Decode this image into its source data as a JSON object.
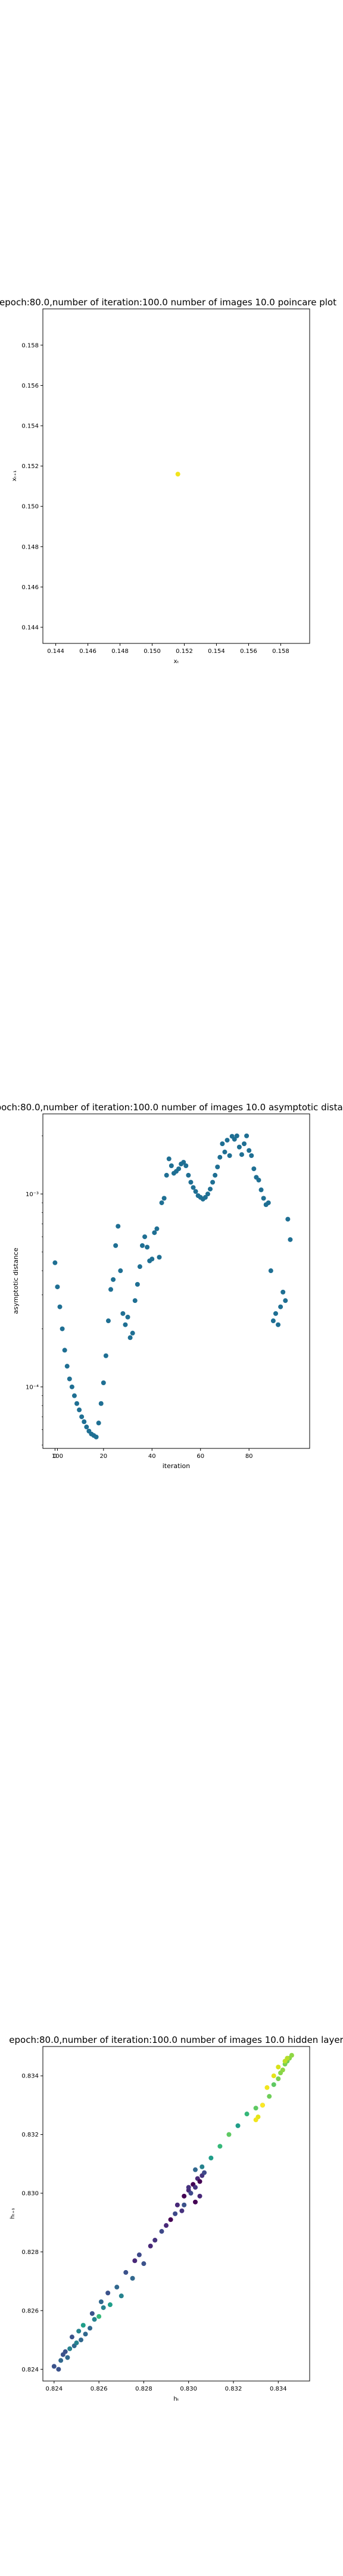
{
  "chart_data": [
    {
      "type": "scatter",
      "title": "epoch:80.0,number of iteration:100.0 number of images 10.0 poincare plot",
      "xlabel": "xₜ",
      "ylabel": "xₜ₊₁",
      "xlim": [
        0.1432,
        0.1598
      ],
      "ylim": [
        0.1432,
        0.1598
      ],
      "xticks": [
        "0.144",
        "0.146",
        "0.148",
        "0.150",
        "0.152",
        "0.154",
        "0.156",
        "0.158"
      ],
      "yticks": [
        "0.144",
        "0.146",
        "0.148",
        "0.150",
        "0.152",
        "0.154",
        "0.156",
        "0.158"
      ],
      "grid": false,
      "points": [
        {
          "x": 0.1516,
          "y": 0.1516,
          "color": "#f2e41d"
        }
      ]
    },
    {
      "type": "scatter",
      "title": "epoch:80.0,number of iteration:100.0  number of images 10.0 asymptotic distance",
      "xlabel": "iteration",
      "ylabel": "asymptotic distance",
      "yscale": "log",
      "xlim": [
        -5,
        105
      ],
      "ylim": [
        4.8e-05,
        0.0026
      ],
      "xticks": [
        "0",
        "20",
        "40",
        "60",
        "80",
        "100"
      ],
      "yticks": [
        "10⁻⁴",
        "10⁻³"
      ],
      "grid": false,
      "color": "#1f6f93",
      "x": [
        0,
        1,
        2,
        3,
        4,
        5,
        6,
        7,
        8,
        9,
        10,
        11,
        12,
        13,
        14,
        15,
        16,
        17,
        18,
        19,
        20,
        21,
        22,
        23,
        24,
        25,
        26,
        27,
        28,
        29,
        30,
        31,
        32,
        33,
        34,
        35,
        36,
        37,
        38,
        39,
        40,
        41,
        42,
        43,
        44,
        45,
        46,
        47,
        48,
        49,
        50,
        51,
        52,
        53,
        54,
        55,
        56,
        57,
        58,
        59,
        60,
        61,
        62,
        63,
        64,
        65,
        66,
        67,
        68,
        69,
        70,
        71,
        72,
        73,
        74,
        75,
        76,
        77,
        78,
        79,
        80,
        81,
        82,
        83,
        84,
        85,
        86,
        87,
        88,
        89,
        90,
        91,
        92,
        93,
        94,
        95,
        96,
        97,
        98,
        99
      ],
      "values": [
        0.00044,
        0.00033,
        0.00026,
        0.0002,
        0.000155,
        0.000128,
        0.00011,
        0.0001,
        9e-05,
        8.2e-05,
        7.6e-05,
        7e-05,
        6.6e-05,
        6.2e-05,
        5.9e-05,
        5.7e-05,
        5.6e-05,
        5.5e-05,
        6.5e-05,
        8.2e-05,
        0.000105,
        0.000145,
        0.00022,
        0.00032,
        0.00036,
        0.00054,
        0.00068,
        0.0004,
        0.00024,
        0.00021,
        0.00023,
        0.00018,
        0.00019,
        0.00028,
        0.00034,
        0.00042,
        0.00054,
        0.0006,
        0.00053,
        0.00045,
        0.00046,
        0.00063,
        0.00066,
        0.00047,
        0.0009,
        0.00095,
        0.00125,
        0.00152,
        0.0014,
        0.00128,
        0.00131,
        0.00135,
        0.00143,
        0.00146,
        0.0014,
        0.00125,
        0.00115,
        0.00108,
        0.00103,
        0.00098,
        0.00096,
        0.00094,
        0.00096,
        0.001,
        0.00106,
        0.00115,
        0.00125,
        0.00138,
        0.00155,
        0.00182,
        0.00165,
        0.0019,
        0.00158,
        0.00199,
        0.00192,
        0.002,
        0.00175,
        0.0016,
        0.00182,
        0.002,
        0.00168,
        0.00158,
        0.00135,
        0.00122,
        0.00118,
        0.00105,
        0.00095,
        0.00088,
        0.0009,
        0.0004,
        0.00022,
        0.00024,
        0.00021,
        0.00026,
        0.00031,
        0.00028,
        0.00074,
        0.00058,
        0.0,
        0.0
      ]
    },
    {
      "type": "scatter",
      "title": "epoch:80.0,number of iteration:100.0  number of images 10.0 hidden layer",
      "xlabel": "hₜ",
      "ylabel": "hₜ₊₁",
      "xlim": [
        0.8235,
        0.8354
      ],
      "ylim": [
        0.8236,
        0.835
      ],
      "xticks": [
        "0.824",
        "0.826",
        "0.828",
        "0.830",
        "0.832",
        "0.834"
      ],
      "yticks": [
        "0.824",
        "0.826",
        "0.828",
        "0.830",
        "0.832",
        "0.834"
      ],
      "grid": false,
      "x": [
        0.824,
        0.8242,
        0.8243,
        0.8244,
        0.8246,
        0.8247,
        0.8245,
        0.8249,
        0.825,
        0.8248,
        0.8252,
        0.8251,
        0.8254,
        0.8253,
        0.8256,
        0.8258,
        0.8257,
        0.826,
        0.8262,
        0.8261,
        0.8265,
        0.8264,
        0.8268,
        0.827,
        0.8272,
        0.8275,
        0.8276,
        0.8278,
        0.828,
        0.8283,
        0.8285,
        0.8288,
        0.829,
        0.8292,
        0.8294,
        0.8295,
        0.8297,
        0.8298,
        0.83,
        0.8301,
        0.8302,
        0.8303,
        0.8304,
        0.8305,
        0.8306,
        0.8307,
        0.8305,
        0.8303,
        0.83,
        0.8298,
        0.8303,
        0.8306,
        0.831,
        0.8314,
        0.8318,
        0.8322,
        0.8326,
        0.833,
        0.8333,
        0.8336,
        0.8338,
        0.834,
        0.8341,
        0.8342,
        0.8343,
        0.8344,
        0.8345,
        0.8346,
        0.8344,
        0.8343,
        0.834,
        0.8338,
        0.8335,
        0.8333,
        0.8331,
        0.833
      ],
      "y": [
        0.8241,
        0.824,
        0.8243,
        0.8245,
        0.8244,
        0.8247,
        0.8246,
        0.8248,
        0.8249,
        0.8251,
        0.825,
        0.8253,
        0.8252,
        0.8255,
        0.8254,
        0.8257,
        0.8259,
        0.8258,
        0.8261,
        0.8263,
        0.8262,
        0.8266,
        0.8268,
        0.8265,
        0.8273,
        0.8271,
        0.8277,
        0.8279,
        0.8276,
        0.8282,
        0.8284,
        0.8287,
        0.8289,
        0.8291,
        0.8293,
        0.8296,
        0.8294,
        0.8299,
        0.8301,
        0.83,
        0.8303,
        0.8302,
        0.8305,
        0.8304,
        0.8306,
        0.8307,
        0.8299,
        0.8297,
        0.8302,
        0.8296,
        0.8308,
        0.8309,
        0.8312,
        0.8316,
        0.832,
        0.8323,
        0.8327,
        0.8329,
        0.833,
        0.8333,
        0.8337,
        0.8339,
        0.8341,
        0.8342,
        0.8344,
        0.8345,
        0.8346,
        0.8347,
        0.8346,
        0.8345,
        0.8343,
        0.834,
        0.8336,
        0.833,
        0.8326,
        0.8325
      ],
      "colors": [
        "#3b528b",
        "#3b528b",
        "#31688e",
        "#3b528b",
        "#31688e",
        "#26828e",
        "#3b528b",
        "#31688e",
        "#26828e",
        "#3b528b",
        "#31688e",
        "#26828e",
        "#31688e",
        "#1f9e89",
        "#31688e",
        "#26828e",
        "#3b528b",
        "#35b779",
        "#26828e",
        "#31688e",
        "#1f9e89",
        "#3b528b",
        "#31688e",
        "#26828e",
        "#3b528b",
        "#31688e",
        "#482878",
        "#3e4989",
        "#3b528b",
        "#482878",
        "#46327e",
        "#3e4989",
        "#482878",
        "#440154",
        "#3e4989",
        "#482878",
        "#46327e",
        "#440154",
        "#482878",
        "#3e4989",
        "#440154",
        "#46327e",
        "#482878",
        "#440154",
        "#46327e",
        "#3e4989",
        "#482878",
        "#440154",
        "#46327e",
        "#3b528b",
        "#31688e",
        "#26828e",
        "#1f9e89",
        "#35b779",
        "#5ec962",
        "#1f9e89",
        "#35b779",
        "#5ec962",
        "#35b779",
        "#6ece58",
        "#5ec962",
        "#7ad151",
        "#86d549",
        "#8fd744",
        "#7ad151",
        "#6ece58",
        "#86d549",
        "#8fd744",
        "#b5de2b",
        "#bddf26",
        "#d8e219",
        "#e5e419",
        "#f1e51d",
        "#fde725",
        "#e5e419",
        "#f1e51d"
      ]
    }
  ]
}
